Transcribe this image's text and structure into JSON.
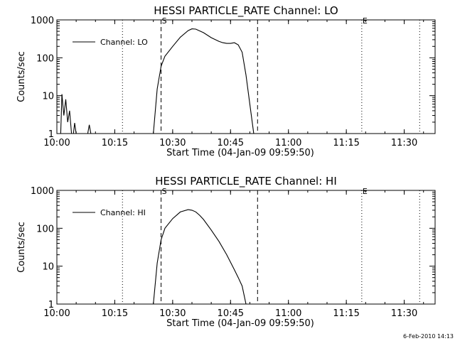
{
  "chart_data": [
    {
      "type": "line",
      "title": "HESSI PARTICLE_RATE Channel: LO",
      "xlabel": "Start Time (04-Jan-09 09:59:50)",
      "ylabel": "Counts/sec",
      "yscale": "log",
      "xlim": [
        "10:00",
        "11:38"
      ],
      "ylim": [
        1,
        1000
      ],
      "x_tick_labels": [
        "10:00",
        "10:15",
        "10:30",
        "10:45",
        "11:00",
        "11:15",
        "11:30"
      ],
      "y_tick_labels": [
        "1",
        "10",
        "100",
        "1000"
      ],
      "legend": {
        "entries": [
          "Channel: LO"
        ],
        "placement": "top-left"
      },
      "markers": {
        "start_label": "S",
        "end_label": "E"
      },
      "vlines_dashed": [
        "10:27",
        "10:52"
      ],
      "vlines_dotted": [
        "10:17",
        "11:19",
        "11:34"
      ],
      "series": [
        {
          "name": "Channel: LO",
          "segments": [
            {
              "x": [
                "10:01",
                "10:01.3",
                "10:01.8",
                "10:02.3",
                "10:02.8",
                "10:03.3",
                "10:03.8"
              ],
              "y": [
                1,
                11,
                3,
                8,
                2,
                4,
                1
              ]
            },
            {
              "x": [
                "10:04.3",
                "10:04.6",
                "10:05"
              ],
              "y": [
                1,
                1.9,
                1
              ]
            },
            {
              "x": [
                "10:08",
                "10:08.4",
                "10:08.8"
              ],
              "y": [
                1,
                1.7,
                1
              ]
            },
            {
              "x": [
                "10:25",
                "10:26",
                "10:27",
                "10:28",
                "10:30",
                "10:32",
                "10:34",
                "10:35",
                "10:36",
                "10:38",
                "10:40",
                "10:42",
                "10:43",
                "10:44",
                "10:45",
                "10:46",
                "10:47",
                "10:48",
                "10:49",
                "10:50",
                "10:51"
              ],
              "y": [
                1,
                15,
                60,
                110,
                200,
                350,
                520,
                580,
                570,
                460,
                340,
                270,
                250,
                240,
                240,
                250,
                220,
                140,
                35,
                6,
                1
              ]
            }
          ]
        }
      ]
    },
    {
      "type": "line",
      "title": "HESSI PARTICLE_RATE Channel: HI",
      "xlabel": "Start Time (04-Jan-09 09:59:50)",
      "ylabel": "Counts/sec",
      "yscale": "log",
      "xlim": [
        "10:00",
        "11:38"
      ],
      "ylim": [
        1,
        1000
      ],
      "x_tick_labels": [
        "10:00",
        "10:15",
        "10:30",
        "10:45",
        "11:00",
        "11:15",
        "11:30"
      ],
      "y_tick_labels": [
        "1",
        "10",
        "100",
        "1000"
      ],
      "legend": {
        "entries": [
          "Channel: HI"
        ],
        "placement": "top-left"
      },
      "markers": {
        "start_label": "S",
        "end_label": "E"
      },
      "vlines_dashed": [
        "10:27",
        "10:52"
      ],
      "vlines_dotted": [
        "10:17",
        "11:19",
        "11:34"
      ],
      "series": [
        {
          "name": "Channel: HI",
          "segments": [
            {
              "x": [
                "10:25",
                "10:26",
                "10:27",
                "10:28",
                "10:30",
                "10:32",
                "10:34",
                "10:35",
                "10:36",
                "10:37",
                "10:38",
                "10:40",
                "10:42",
                "10:44",
                "10:46",
                "10:47",
                "10:48",
                "10:49"
              ],
              "y": [
                1,
                12,
                50,
                100,
                180,
                270,
                310,
                300,
                270,
                220,
                170,
                90,
                45,
                20,
                8,
                5,
                3,
                1
              ]
            }
          ]
        }
      ]
    }
  ],
  "footer": {
    "date_stamp": "6-Feb-2010 14:13"
  }
}
